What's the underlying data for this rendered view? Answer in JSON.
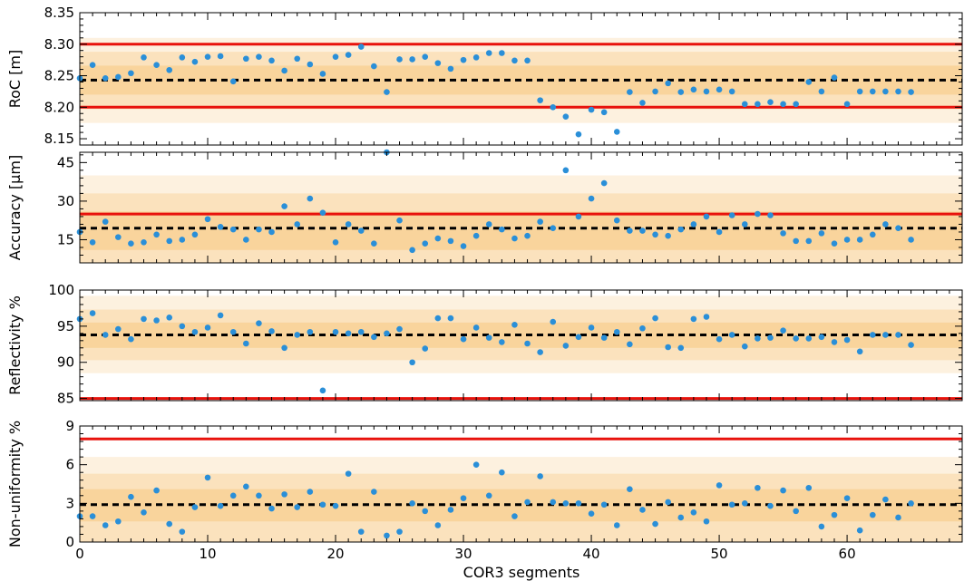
{
  "chart_data": [
    {
      "type": "scatter",
      "ylabel": "RoC [m]",
      "xlim": [
        0,
        69
      ],
      "ylim": [
        8.14,
        8.35
      ],
      "yticks": [
        8.15,
        8.2,
        8.25,
        8.3,
        8.35
      ],
      "ytick_labels": [
        "8.15",
        "8.20",
        "8.25",
        "8.30",
        "8.35"
      ],
      "mean": 8.243,
      "bands": [
        [
          8.175,
          8.31
        ],
        [
          8.197,
          8.288
        ],
        [
          8.22,
          8.266
        ]
      ],
      "limit_lines": [
        8.3,
        8.2
      ],
      "x": [
        0,
        1,
        2,
        3,
        4,
        5,
        6,
        7,
        8,
        9,
        10,
        11,
        12,
        13,
        14,
        15,
        16,
        17,
        18,
        19,
        20,
        21,
        22,
        23,
        24,
        25,
        26,
        27,
        28,
        29,
        30,
        31,
        32,
        33,
        34,
        35,
        36,
        37,
        38,
        39,
        40,
        41,
        42,
        43,
        44,
        45,
        46,
        47,
        48,
        49,
        50,
        51,
        52,
        53,
        54,
        55,
        56,
        57,
        58,
        59,
        60,
        61,
        62,
        63,
        64,
        65
      ],
      "values": [
        8.246,
        8.267,
        8.246,
        8.248,
        8.254,
        8.279,
        8.267,
        8.259,
        8.279,
        8.272,
        8.28,
        8.281,
        8.241,
        8.277,
        8.28,
        8.274,
        8.258,
        8.277,
        8.268,
        8.253,
        8.28,
        8.283,
        8.296,
        8.265,
        8.224,
        8.276,
        8.276,
        8.28,
        8.27,
        8.261,
        8.275,
        8.279,
        8.286,
        8.286,
        8.274,
        8.274,
        8.211,
        8.2,
        8.185,
        8.157,
        8.196,
        8.192,
        8.161,
        8.224,
        8.207,
        8.225,
        8.238,
        8.224,
        8.228,
        8.225,
        8.228,
        8.225,
        8.205,
        8.205,
        8.208,
        8.205,
        8.205,
        8.24,
        8.225,
        8.247,
        8.205,
        8.225,
        8.225,
        8.225,
        8.225,
        8.224
      ]
    },
    {
      "type": "scatter",
      "ylabel": "Accuracy [μm]",
      "xlim": [
        0,
        69
      ],
      "ylim": [
        6,
        49
      ],
      "yticks": [
        15,
        30,
        45
      ],
      "ytick_labels": [
        "15",
        "30",
        "45"
      ],
      "mean": 19.5,
      "bands": [
        [
          6,
          40
        ],
        [
          6,
          33
        ],
        [
          11,
          26
        ]
      ],
      "limit_lines": [
        25
      ],
      "x": [
        0,
        1,
        2,
        3,
        4,
        5,
        6,
        7,
        8,
        9,
        10,
        11,
        12,
        13,
        14,
        15,
        16,
        17,
        18,
        19,
        20,
        21,
        22,
        23,
        24,
        25,
        26,
        27,
        28,
        29,
        30,
        31,
        32,
        33,
        34,
        35,
        36,
        37,
        38,
        39,
        40,
        41,
        42,
        43,
        44,
        45,
        46,
        47,
        48,
        49,
        50,
        51,
        52,
        53,
        54,
        55,
        56,
        57,
        58,
        59,
        60,
        61,
        62,
        63,
        64,
        65
      ],
      "values": [
        18,
        14,
        22,
        16,
        13.5,
        14,
        17,
        14.5,
        15,
        17,
        23,
        20,
        19,
        15,
        19,
        18,
        28,
        21,
        31,
        25.5,
        14,
        21,
        18.5,
        13.5,
        49,
        22.5,
        11,
        13.5,
        15.5,
        14.5,
        12.5,
        16.5,
        21,
        19,
        15.5,
        16.5,
        22,
        19.5,
        42,
        24,
        31,
        37,
        22.5,
        18.5,
        18.5,
        17,
        16.5,
        19,
        21,
        24,
        18,
        24.5,
        21,
        25,
        24.5,
        17.5,
        14.5,
        14.5,
        17.5,
        13.5,
        15,
        15,
        17,
        21,
        19.5,
        15
      ]
    },
    {
      "type": "scatter",
      "ylabel": "Reflectivity %",
      "xlim": [
        0,
        69
      ],
      "ylim": [
        84.7,
        100
      ],
      "yticks": [
        85,
        90,
        95,
        100
      ],
      "ytick_labels": [
        "85",
        "90",
        "95",
        "100"
      ],
      "mean": 93.8,
      "bands": [
        [
          88.5,
          99.2
        ],
        [
          90.3,
          97.3
        ],
        [
          92.0,
          95.5
        ]
      ],
      "limit_lines": [
        85
      ],
      "x": [
        0,
        1,
        2,
        3,
        4,
        5,
        6,
        7,
        8,
        9,
        10,
        11,
        12,
        13,
        14,
        15,
        16,
        17,
        18,
        19,
        20,
        21,
        22,
        23,
        24,
        25,
        26,
        27,
        28,
        29,
        30,
        31,
        32,
        33,
        34,
        35,
        36,
        37,
        38,
        39,
        40,
        41,
        42,
        43,
        44,
        45,
        46,
        47,
        48,
        49,
        50,
        51,
        52,
        53,
        54,
        55,
        56,
        57,
        58,
        59,
        60,
        61,
        62,
        63,
        64,
        65
      ],
      "values": [
        96,
        96.8,
        93.8,
        94.6,
        93.2,
        96,
        95.8,
        96.2,
        95,
        94.2,
        94.8,
        96.5,
        94.2,
        92.6,
        95.4,
        94.3,
        92,
        93.8,
        94.2,
        86.1,
        94.2,
        94,
        94.2,
        93.5,
        94,
        94.6,
        90,
        91.9,
        96.1,
        96.1,
        93.2,
        94.8,
        93.4,
        92.8,
        95.2,
        92.6,
        91.4,
        95.6,
        92.3,
        93.5,
        94.8,
        93.4,
        94.2,
        92.5,
        94.7,
        96.1,
        92.1,
        92,
        96,
        96.3,
        93.2,
        93.8,
        92.2,
        93.3,
        93.4,
        94.4,
        93.3,
        93.3,
        93.5,
        92.8,
        93.1,
        91.5,
        93.8,
        93.8,
        93.8,
        92.4
      ]
    },
    {
      "type": "scatter",
      "ylabel": "Non-uniformity %",
      "xlabel": "COR3 segments",
      "xlim": [
        0,
        69
      ],
      "ylim": [
        0,
        9
      ],
      "yticks": [
        0,
        3,
        6,
        9
      ],
      "ytick_labels": [
        "0",
        "3",
        "6",
        "9"
      ],
      "xticks": [
        0,
        10,
        20,
        30,
        40,
        50,
        60
      ],
      "xtick_labels": [
        "0",
        "10",
        "20",
        "30",
        "40",
        "50",
        "60"
      ],
      "mean": 2.9,
      "bands": [
        [
          0,
          6.6
        ],
        [
          0,
          5.3
        ],
        [
          1.6,
          4.1
        ]
      ],
      "limit_lines": [
        8
      ],
      "x": [
        0,
        1,
        2,
        3,
        4,
        5,
        6,
        7,
        8,
        9,
        10,
        11,
        12,
        13,
        14,
        15,
        16,
        17,
        18,
        19,
        20,
        21,
        22,
        23,
        24,
        25,
        26,
        27,
        28,
        29,
        30,
        31,
        32,
        33,
        34,
        35,
        36,
        37,
        38,
        39,
        40,
        41,
        42,
        43,
        44,
        45,
        46,
        47,
        48,
        49,
        50,
        51,
        52,
        53,
        54,
        55,
        56,
        57,
        58,
        59,
        60,
        61,
        62,
        63,
        64,
        65
      ],
      "values": [
        2,
        2,
        1.3,
        1.6,
        3.5,
        2.3,
        4,
        1.4,
        0.8,
        2.7,
        5,
        2.8,
        3.6,
        4.3,
        3.6,
        2.6,
        3.7,
        2.7,
        3.9,
        2.9,
        2.8,
        5.3,
        0.8,
        3.9,
        0.5,
        0.8,
        3,
        2.4,
        1.3,
        2.5,
        3.4,
        6,
        3.6,
        5.4,
        2,
        3.1,
        5.1,
        3.1,
        3,
        3,
        2.2,
        2.9,
        1.3,
        4.1,
        2.5,
        1.4,
        3.1,
        1.9,
        2.3,
        1.6,
        4.4,
        2.9,
        3,
        4.2,
        2.8,
        4,
        2.4,
        4.2,
        1.2,
        2.1,
        3.4,
        0.9,
        2.1,
        3.3,
        1.9,
        3
      ]
    }
  ],
  "colors": {
    "marker": "#2a8fd8",
    "limit": "#e8120c",
    "mean": "#000000",
    "band_outer": "#fdf1df",
    "band_mid": "#fbe2bd",
    "band_inner": "#f9d49c",
    "frame": "#000000"
  }
}
